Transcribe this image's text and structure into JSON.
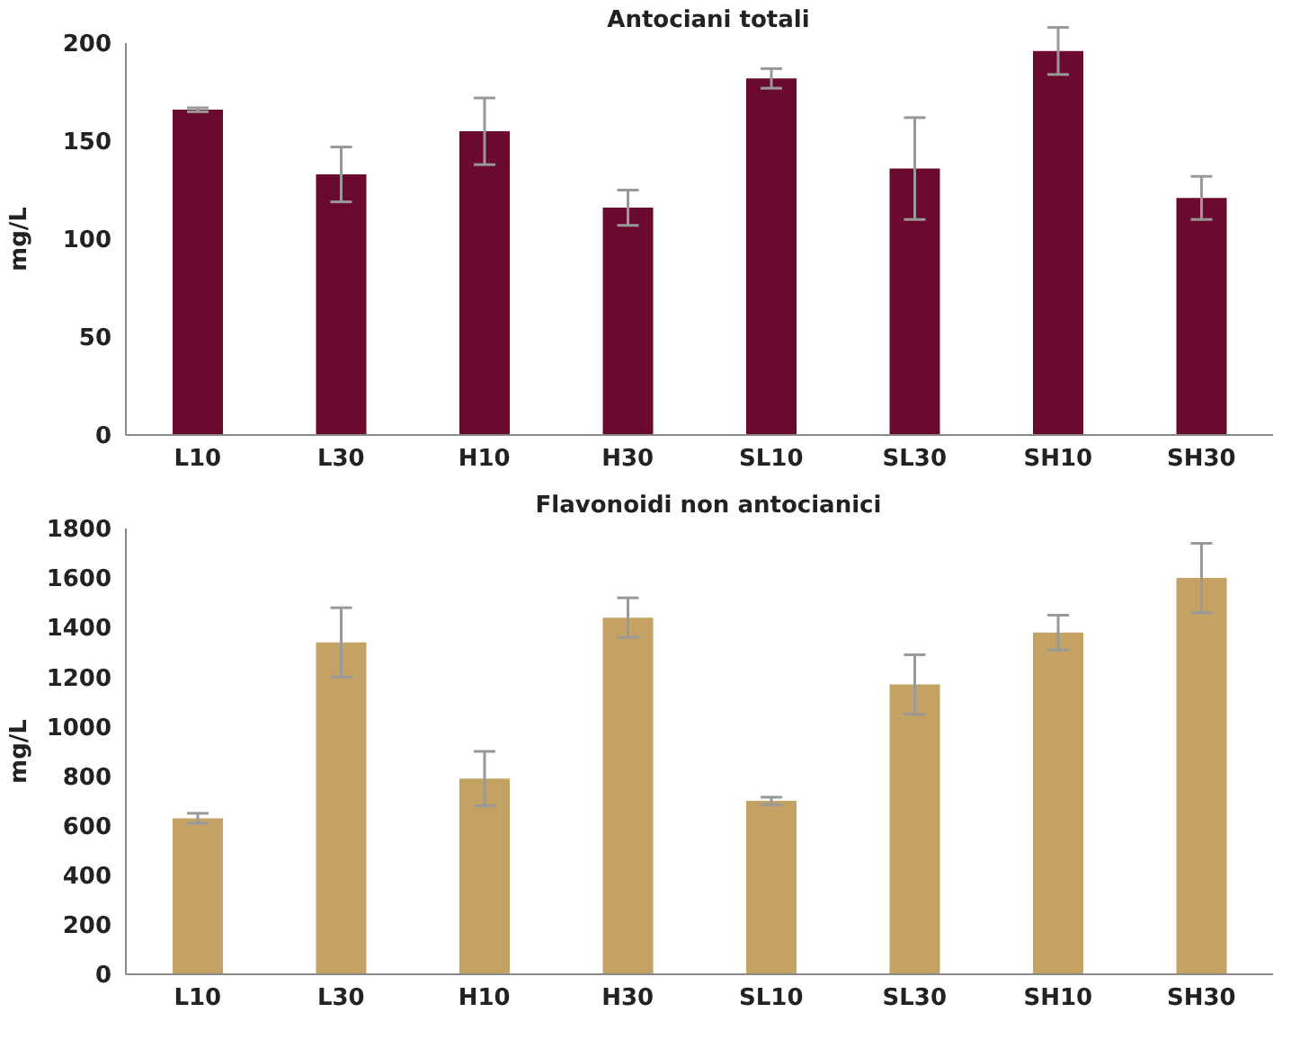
{
  "chart_data": [
    {
      "type": "bar",
      "title": "Antociani totali",
      "ylabel": "mg/L",
      "categories": [
        "L10",
        "L30",
        "H10",
        "H30",
        "SL10",
        "SL30",
        "SH10",
        "SH30"
      ],
      "values": [
        166,
        133,
        155,
        116,
        182,
        136,
        196,
        121
      ],
      "errors": [
        1,
        14,
        17,
        9,
        5,
        26,
        12,
        11
      ],
      "color": "#6b0a2e",
      "ylim": [
        0,
        200
      ],
      "yticks": [
        0,
        50,
        100,
        150,
        200
      ],
      "grid": false
    },
    {
      "type": "bar",
      "title": "Flavonoidi non antocianici",
      "ylabel": "mg/L",
      "categories": [
        "L10",
        "L30",
        "H10",
        "H30",
        "SL10",
        "SL30",
        "SH10",
        "SH30"
      ],
      "values": [
        630,
        1340,
        790,
        1440,
        700,
        1170,
        1380,
        1600
      ],
      "errors": [
        20,
        140,
        110,
        80,
        15,
        120,
        70,
        140
      ],
      "color": "#c4a264",
      "ylim": [
        0,
        1800
      ],
      "yticks": [
        0,
        200,
        400,
        600,
        800,
        1000,
        1200,
        1400,
        1600,
        1800
      ],
      "grid": false
    }
  ]
}
